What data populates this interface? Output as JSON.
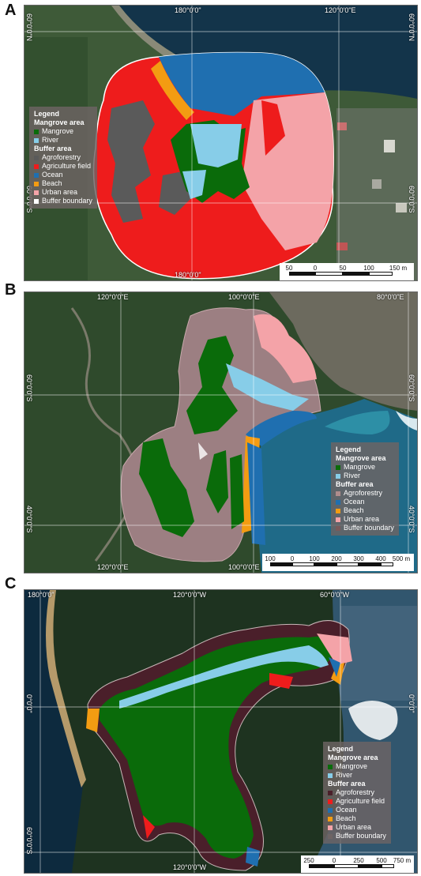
{
  "panels": [
    {
      "letter": "A",
      "coords": {
        "top_left": "180°0'0\"",
        "top_right": "120°0'0\"E",
        "bottom": "180°0'0\"",
        "left_top": "60°0'0\"N",
        "left_bottom": "60°0'0\"S",
        "right_top": "60°0'0\"N",
        "right_bottom": "60°0'0\"S"
      },
      "legend": {
        "title": "Legend",
        "sections": [
          {
            "heading": "Mangrove area",
            "items": [
              {
                "label": "Mangrove",
                "color": "#0a6b0a"
              },
              {
                "label": "River",
                "color": "#87cde8"
              }
            ]
          },
          {
            "heading": "Buffer area",
            "items": [
              {
                "label": "Agroforestry",
                "color": "#5a5a5a"
              },
              {
                "label": "Agriculture field",
                "color": "#ee1c1c"
              },
              {
                "label": "Ocean",
                "color": "#1f6fb0"
              },
              {
                "label": "Beach",
                "color": "#f39c12"
              },
              {
                "label": "Urban area",
                "color": "#f4a3a8"
              },
              {
                "label": "Buffer boundary",
                "color": "#ffffff"
              }
            ]
          }
        ]
      },
      "scale": {
        "ticks": [
          "50",
          "0",
          "50",
          "100",
          "150 m"
        ]
      }
    },
    {
      "letter": "B",
      "coords": {
        "top_left": "120°0'0\"E",
        "top_mid": "100°0'0\"E",
        "top_right": "80°0'0\"E",
        "bottom_left": "120°0'0\"E",
        "bottom_right": "100°0'0\"E",
        "left_top": "60°0'0\"S",
        "left_bottom": "40°0'0\"S",
        "right_top": "60°0'0\"S",
        "right_bottom": "40°0'0\"S"
      },
      "legend": {
        "title": "Legend",
        "sections": [
          {
            "heading": "Mangrove area",
            "items": [
              {
                "label": "Mangrove",
                "color": "#0a6b0a"
              },
              {
                "label": "River",
                "color": "#87cde8"
              }
            ]
          },
          {
            "heading": "Buffer area",
            "items": [
              {
                "label": "Agroforestry",
                "color": "#b08c8c"
              },
              {
                "label": "Ocean",
                "color": "#1f6fb0"
              },
              {
                "label": "Beach",
                "color": "#f39c12"
              },
              {
                "label": "Urban area",
                "color": "#f4a3a8"
              },
              {
                "label": "Buffer boundary",
                "color": "#7a5a5a"
              }
            ]
          }
        ]
      },
      "scale": {
        "ticks": [
          "100",
          "0",
          "100",
          "200",
          "300",
          "400",
          "500 m"
        ]
      }
    },
    {
      "letter": "C",
      "coords": {
        "top_left": "180°0'0\"",
        "top_mid": "120°0'0\"W",
        "top_right": "60°0'0\"W",
        "bottom_mid": "120°0'0\"W",
        "left_mid": "0°0'0\"",
        "left_bottom": "60°0'0\"S",
        "right_mid": "0°0'0\""
      },
      "legend": {
        "title": "Legend",
        "sections": [
          {
            "heading": "Mangrove area",
            "items": [
              {
                "label": "Mangrove",
                "color": "#0a6b0a"
              },
              {
                "label": "River",
                "color": "#87cde8"
              }
            ]
          },
          {
            "heading": "Buffer area",
            "items": [
              {
                "label": "Agroforestry",
                "color": "#4a1f2a"
              },
              {
                "label": "Agriculture field",
                "color": "#ee1c1c"
              },
              {
                "label": "Ocean",
                "color": "#1f6fb0"
              },
              {
                "label": "Beach",
                "color": "#f39c12"
              },
              {
                "label": "Urban area",
                "color": "#f4a3a8"
              },
              {
                "label": "Buffer boundary",
                "color": "#6e6464"
              }
            ]
          }
        ]
      },
      "scale": {
        "ticks": [
          "250",
          "0",
          "250",
          "500",
          "750 m"
        ]
      }
    }
  ]
}
